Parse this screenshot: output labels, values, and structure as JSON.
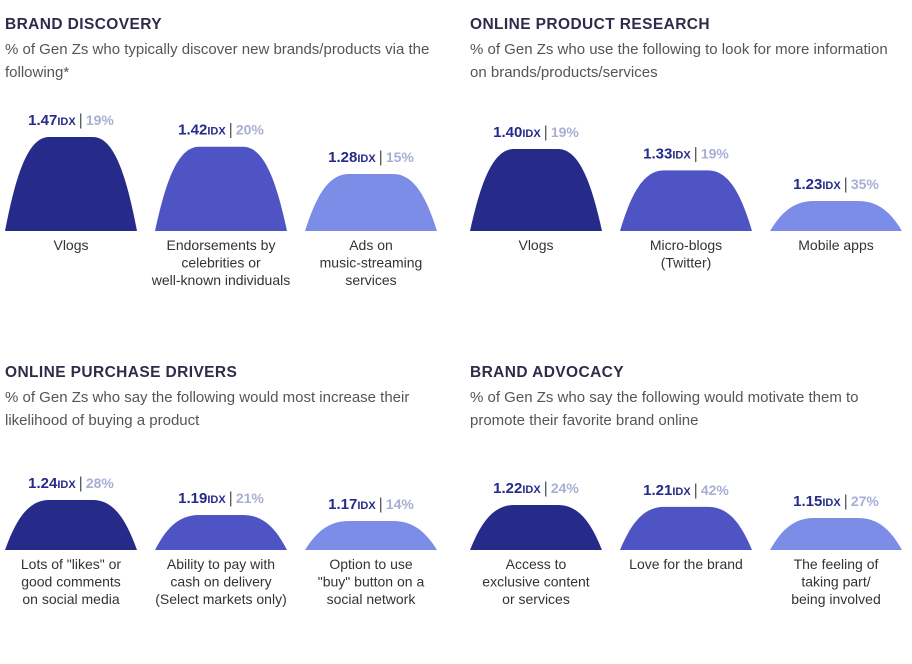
{
  "colors": {
    "bar1": "#262a88",
    "bar2": "#4f54c4",
    "bar3": "#7c8de8",
    "idx": "#262a88",
    "pct": "#a9aed4"
  },
  "idx_suffix": "IDX",
  "chart_data": [
    {
      "type": "bar",
      "title": "BRAND DISCOVERY",
      "subtitle": "% of Gen Zs who typically discover new brands/products via the following*",
      "categories": [
        [
          "Vlogs"
        ],
        [
          "Endorsements by",
          "celebrities or",
          "well-known individuals"
        ],
        [
          "Ads on",
          "music-streaming",
          "services"
        ]
      ],
      "idx": [
        1.47,
        1.42,
        1.28
      ],
      "pct": [
        19,
        20,
        15
      ]
    },
    {
      "type": "bar",
      "title": "ONLINE PRODUCT RESEARCH",
      "subtitle": "% of Gen Zs who use the following to look for more information on brands/products/services",
      "categories": [
        [
          "Vlogs"
        ],
        [
          "Micro-blogs",
          "(Twitter)"
        ],
        [
          "Mobile apps"
        ]
      ],
      "idx": [
        1.4,
        1.33,
        1.23
      ],
      "pct": [
        19,
        19,
        35
      ]
    },
    {
      "type": "bar",
      "title": "ONLINE PURCHASE DRIVERS",
      "subtitle": "% of Gen Zs who say the following would most increase their likelihood of buying a product",
      "categories": [
        [
          "Lots of \"likes\" or",
          "good comments",
          "on social media"
        ],
        [
          "Ability to pay with",
          "cash on delivery",
          "(Select markets only)"
        ],
        [
          "Option to use",
          "\"buy\" button on a",
          "social network"
        ]
      ],
      "idx": [
        1.24,
        1.19,
        1.17
      ],
      "pct": [
        28,
        21,
        14
      ]
    },
    {
      "type": "bar",
      "title": "BRAND ADVOCACY",
      "subtitle": "% of Gen Zs who say the following would motivate them to promote their favorite brand online",
      "categories": [
        [
          "Access to",
          "exclusive content",
          "or services"
        ],
        [
          "Love for the brand"
        ],
        [
          "The feeling of",
          "taking part/",
          "being involved"
        ]
      ],
      "idx": [
        1.22,
        1.21,
        1.15
      ],
      "pct": [
        24,
        42,
        27
      ]
    }
  ]
}
